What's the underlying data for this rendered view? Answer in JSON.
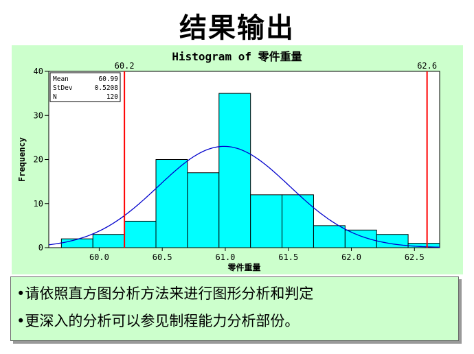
{
  "slide": {
    "title": "结果输出",
    "notes": [
      "•请依照直方图分析方法来进行图形分析和判定",
      "•更深入的分析可以参见制程能力分析部份。"
    ]
  },
  "stats": {
    "mean_label": "Mean",
    "mean_value": "60.99",
    "stdev_label": "StDev",
    "stdev_value": "0.5208",
    "n_label": "N",
    "n_value": "120"
  },
  "colors": {
    "panel_bg": "#ccffcc",
    "plot_bg": "#ffffff",
    "bar_fill": "#00ffff",
    "bar_stroke": "#000000",
    "curve": "#0000cc",
    "spec_line": "#ff0000"
  },
  "chart_data": {
    "type": "bar",
    "title": "Histogram of 零件重量",
    "xlabel": "零件重量",
    "ylabel": "Frequency",
    "bin_width": 0.25,
    "bin_starts": [
      59.7,
      59.95,
      60.2,
      60.45,
      60.7,
      60.95,
      61.2,
      61.45,
      61.7,
      61.95,
      62.2,
      62.45
    ],
    "values": [
      2,
      3,
      6,
      20,
      17,
      35,
      12,
      12,
      5,
      4,
      3,
      1
    ],
    "xlim": [
      59.6,
      62.7
    ],
    "ylim": [
      0,
      40
    ],
    "x_ticks": [
      60.0,
      60.5,
      61.0,
      61.5,
      62.0,
      62.5
    ],
    "x_tick_labels": [
      "60.0",
      "60.5",
      "61.0",
      "61.5",
      "62.0",
      "62.5"
    ],
    "y_ticks": [
      0,
      10,
      20,
      30,
      40
    ],
    "y_tick_labels": [
      "0",
      "10",
      "20",
      "30",
      "40"
    ],
    "spec_limits": [
      {
        "value": 60.2,
        "label": "60.2"
      },
      {
        "value": 62.6,
        "label": "62.6"
      }
    ],
    "normal_curve": {
      "mean": 60.99,
      "stdev": 0.5208,
      "n": 120
    },
    "grid": false,
    "legend": "top-left stats box"
  }
}
